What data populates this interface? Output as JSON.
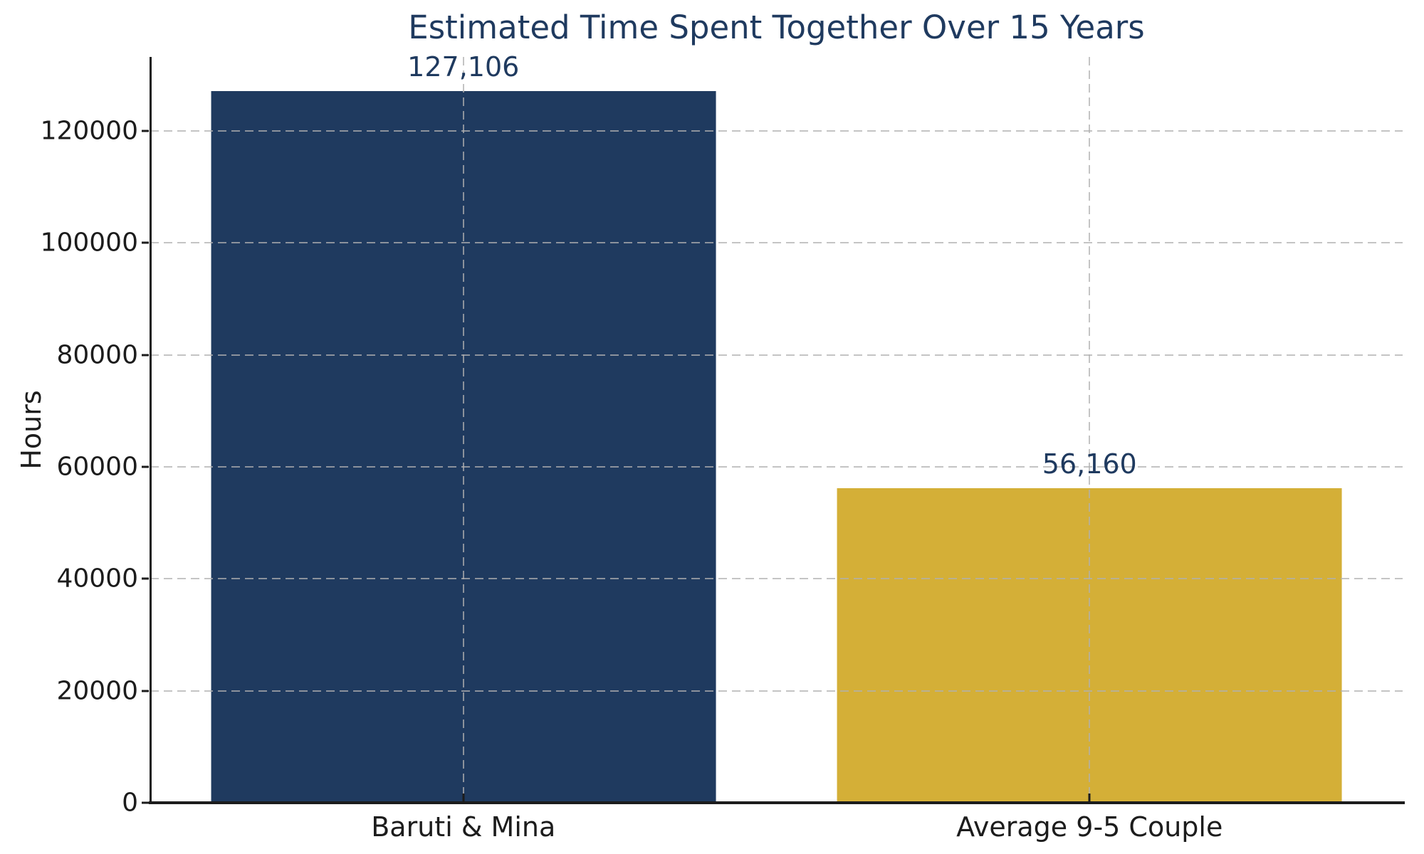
{
  "figure": {
    "background": "#ffffff"
  },
  "chart_data": {
    "type": "bar",
    "title": "Estimated Time Spent Together Over 15 Years",
    "xlabel": "",
    "ylabel": "Hours",
    "categories": [
      "Baruti & Mina",
      "Average 9-5 Couple"
    ],
    "values": [
      127106,
      56160
    ],
    "value_labels": [
      "127,106",
      "56,160"
    ],
    "bar_colors": [
      "#1f3a5f",
      "#d4af37"
    ],
    "yticks": [
      0,
      20000,
      40000,
      60000,
      80000,
      100000,
      120000
    ],
    "ytick_labels": [
      "0",
      "20000",
      "40000",
      "60000",
      "80000",
      "100000",
      "120000"
    ],
    "ylim": [
      0,
      133200
    ],
    "legend": null,
    "grid": {
      "visible": true,
      "style": "dashed",
      "axes": "both",
      "color": "#b0b0b0",
      "drawn_above_bars": true
    },
    "colors": {
      "title": "#1f3a5f",
      "value_label": "#1f3a5f",
      "tick_label": "#1c1c1c",
      "axis": "#1c1c1c"
    }
  }
}
